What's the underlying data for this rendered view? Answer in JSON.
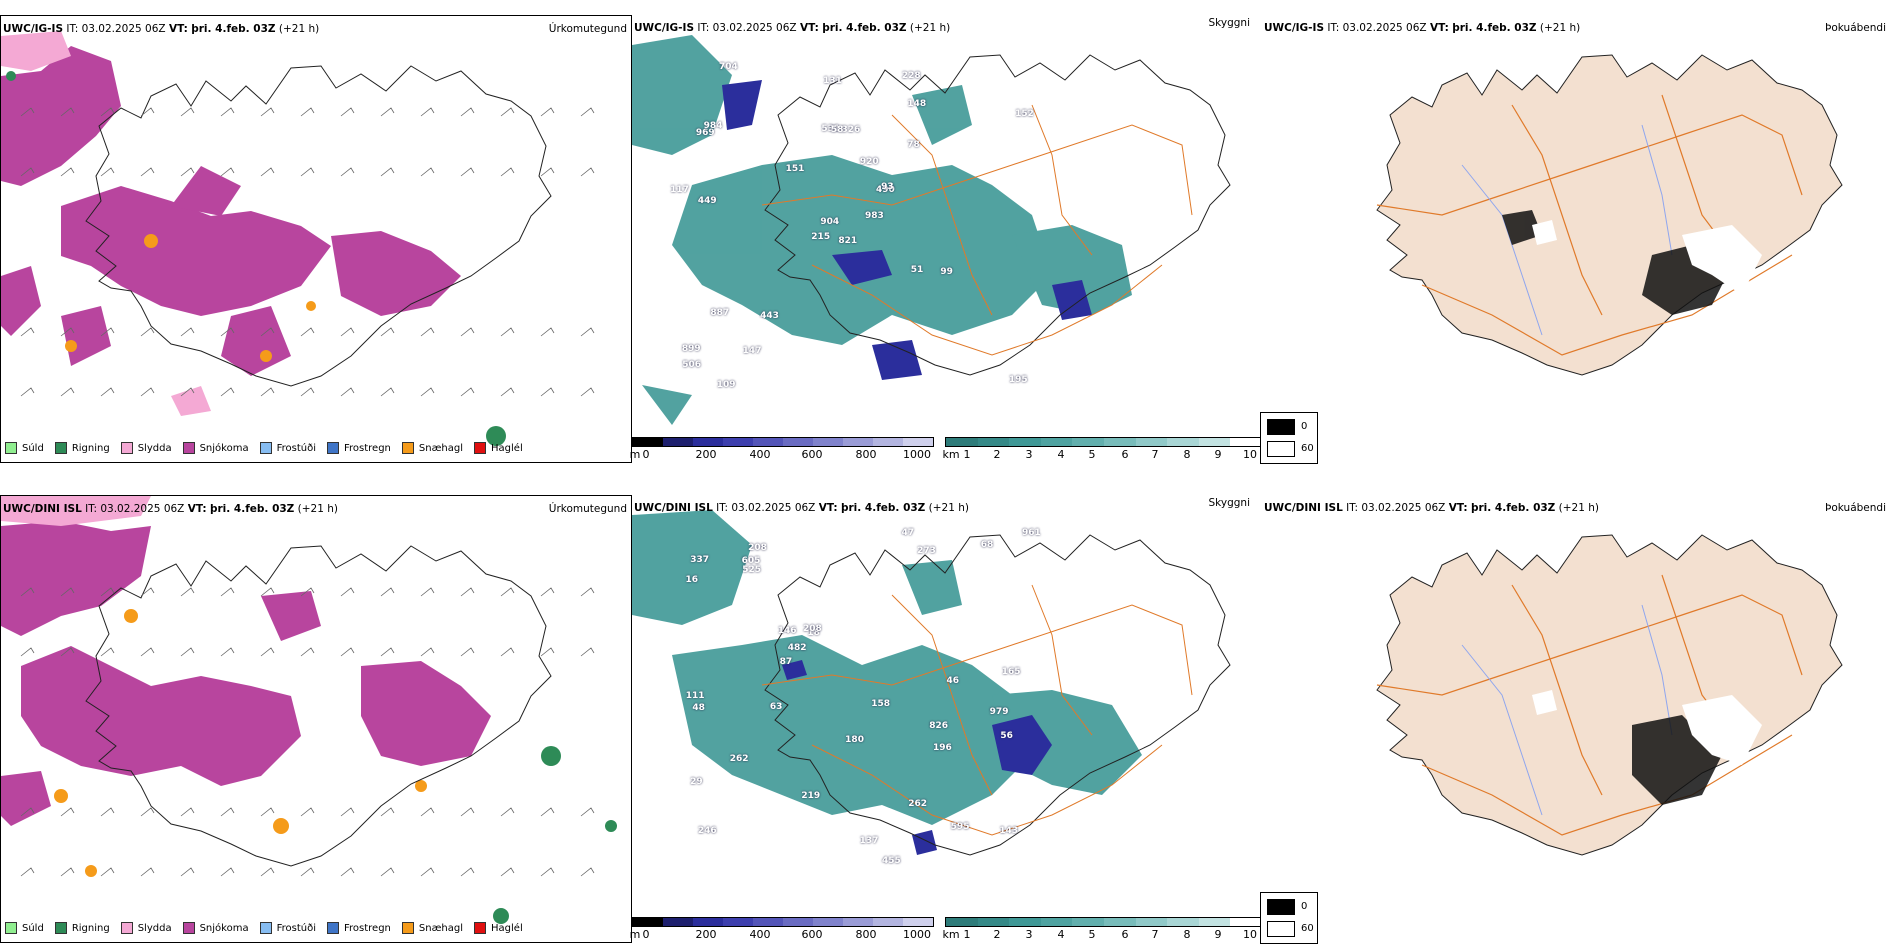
{
  "colors": {
    "drizzle": "#90ee90",
    "rain": "#2e8b57",
    "sleet": "#f4a9d4",
    "snow": "#b8459e",
    "freezing_drizzle": "#87bdf2",
    "freezing_rain": "#3f74c6",
    "snow_pellets": "#f59b1a",
    "hail": "#e01010",
    "cloud_teal": "#3f9896",
    "cloud_blue": "#2b2e9c",
    "land": "#f3e0d0",
    "roads": "#e07a2a",
    "rivers": "#8fa6ee"
  },
  "rows": [
    {
      "model_label": "UWC/IG-IS",
      "it_label": "IT: 03.02.2025 06Z",
      "vt_prefix": "VT:",
      "vt_value": "þri. 4.feb. 03Z",
      "lead": "(+21 h)",
      "cloud_labels_icon": "numeric-cloud-base-labels",
      "cloud_numbers": [
        "821",
        "969",
        "904",
        "899",
        "490",
        "443",
        "228",
        "326",
        "148",
        "983",
        "704",
        "195",
        "449",
        "152",
        "215",
        "78",
        "109",
        "531",
        "920",
        "887",
        "151",
        "506",
        "147",
        "58",
        "93",
        "99",
        "984",
        "131",
        "117",
        "51"
      ]
    },
    {
      "model_label": "UWC/DINI ISL",
      "it_label": "IT: 03.02.2025 06Z",
      "vt_prefix": "VT:",
      "vt_value": "þri. 4.feb. 03Z",
      "lead": "(+21 h)",
      "cloud_numbers": [
        "826",
        "979",
        "246",
        "208",
        "18",
        "595",
        "29",
        "273",
        "146",
        "455",
        "16",
        "111",
        "337",
        "143",
        "219",
        "165",
        "180",
        "158",
        "208",
        "262",
        "961",
        "68",
        "87",
        "56",
        "47",
        "605",
        "196",
        "48",
        "525",
        "46",
        "137",
        "262",
        "482",
        "63"
      ]
    }
  ],
  "panel_titles": {
    "precip_type": "Úrkomutegund",
    "cloud": "Skyggni",
    "fog": "Þokuábendi"
  },
  "precip_legend": [
    {
      "label": "Súld",
      "color": "#90ee90"
    },
    {
      "label": "Rigning",
      "color": "#2e8b57"
    },
    {
      "label": "Slydda",
      "color": "#f4a9d4"
    },
    {
      "label": "Snjókoma",
      "color": "#b8459e"
    },
    {
      "label": "Frostúði",
      "color": "#87bdf2"
    },
    {
      "label": "Frostregn",
      "color": "#3f74c6"
    },
    {
      "label": "Snæhagl",
      "color": "#f59b1a"
    },
    {
      "label": "Haglél",
      "color": "#e01010"
    }
  ],
  "ceiling_bar": {
    "unit": "m",
    "ticks": [
      "0",
      "200",
      "400",
      "600",
      "800",
      "1000"
    ],
    "colors": [
      "#000000",
      "#1d1f6e",
      "#2b2e9c",
      "#3d3fae",
      "#5355b8",
      "#6a6cc2",
      "#8083cc",
      "#9a9cd6",
      "#b3b5e0",
      "#cfd0ec"
    ]
  },
  "visibility_bar": {
    "unit": "km",
    "ticks": [
      "1",
      "2",
      "3",
      "4",
      "5",
      "6",
      "7",
      "8",
      "9",
      "10"
    ],
    "colors": [
      "#2e7c7a",
      "#358987",
      "#3f9896",
      "#4fa3a1",
      "#62afad",
      "#78bcba",
      "#90c9c8",
      "#a9d6d5",
      "#c3e3e2",
      "#ffffff"
    ]
  },
  "fog_key": {
    "values": [
      "0",
      "60"
    ],
    "colors": [
      "#000000",
      "#ffffff"
    ]
  }
}
